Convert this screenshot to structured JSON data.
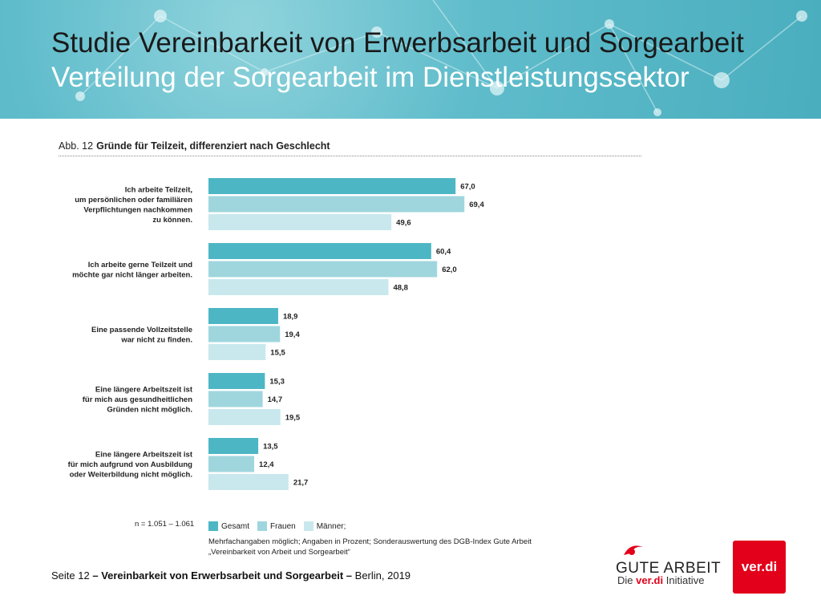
{
  "header": {
    "title": "Studie Vereinbarkeit von Erwerbsarbeit und Sorgearbeit",
    "subtitle": "Verteilung der Sorgearbeit im Dienstleistungssektor"
  },
  "figure": {
    "label": "Abb. 12",
    "title": "Gründe für Teilzeit, differenziert nach Geschlecht"
  },
  "chart_data": {
    "type": "bar",
    "orientation": "horizontal",
    "title": "Gründe für Teilzeit, differenziert nach Geschlecht",
    "categories": [
      [
        "Ich arbeite Teilzeit,",
        "um persönlichen oder familiären",
        "Verpflichtungen nachkommen",
        "zu können."
      ],
      [
        "Ich arbeite gerne Teilzeit und",
        "möchte gar nicht länger arbeiten."
      ],
      [
        "Eine passende Vollzeitstelle",
        "war nicht zu finden."
      ],
      [
        "Eine längere Arbeitszeit ist",
        "für mich aus gesundheitlichen",
        "Gründen nicht möglich."
      ],
      [
        "Eine längere Arbeitszeit ist",
        "für mich aufgrund von Ausbildung",
        "oder Weiterbildung nicht möglich."
      ]
    ],
    "series": [
      {
        "name": "Gesamt",
        "color": "#4db6c4",
        "values": [
          67.0,
          60.4,
          18.9,
          15.3,
          13.5
        ],
        "labels": [
          "67,0",
          "60,4",
          "18,9",
          "15,3",
          "13,5"
        ]
      },
      {
        "name": "Frauen",
        "color": "#9fd6de",
        "values": [
          69.4,
          62.0,
          19.4,
          14.7,
          12.4
        ],
        "labels": [
          "69,4",
          "62,0",
          "19,4",
          "14,7",
          "12,4"
        ]
      },
      {
        "name": "Männer;",
        "color": "#c8e8ed",
        "values": [
          49.6,
          48.8,
          15.5,
          19.5,
          21.7
        ],
        "labels": [
          "49,6",
          "48,8",
          "15,5",
          "19,5",
          "21,7"
        ]
      }
    ],
    "xlim": [
      0,
      100
    ],
    "grid": false,
    "legend_position": "bottom"
  },
  "notes": {
    "n": "n = 1.051 – 1.061",
    "line1": "Mehrfachangaben möglich; Angaben in Prozent; Sonderauswertung des DGB-Index Gute Arbeit",
    "line2": "„Vereinbarkeit von Arbeit und Sorgearbeit“"
  },
  "footer": {
    "page": "Seite 12",
    "sep1": "–",
    "title": "Vereinbarkeit von Erwerbsarbeit und Sorgearbeit",
    "sep2": "–",
    "place": "Berlin, 2019"
  },
  "logos": {
    "gute_arbeit_title": "GUTE ARBEIT",
    "gute_arbeit_sub_pre": "Die",
    "gute_arbeit_sub_brand": "ver.di",
    "gute_arbeit_sub_post": "Initiative",
    "verdi": "ver.di"
  }
}
